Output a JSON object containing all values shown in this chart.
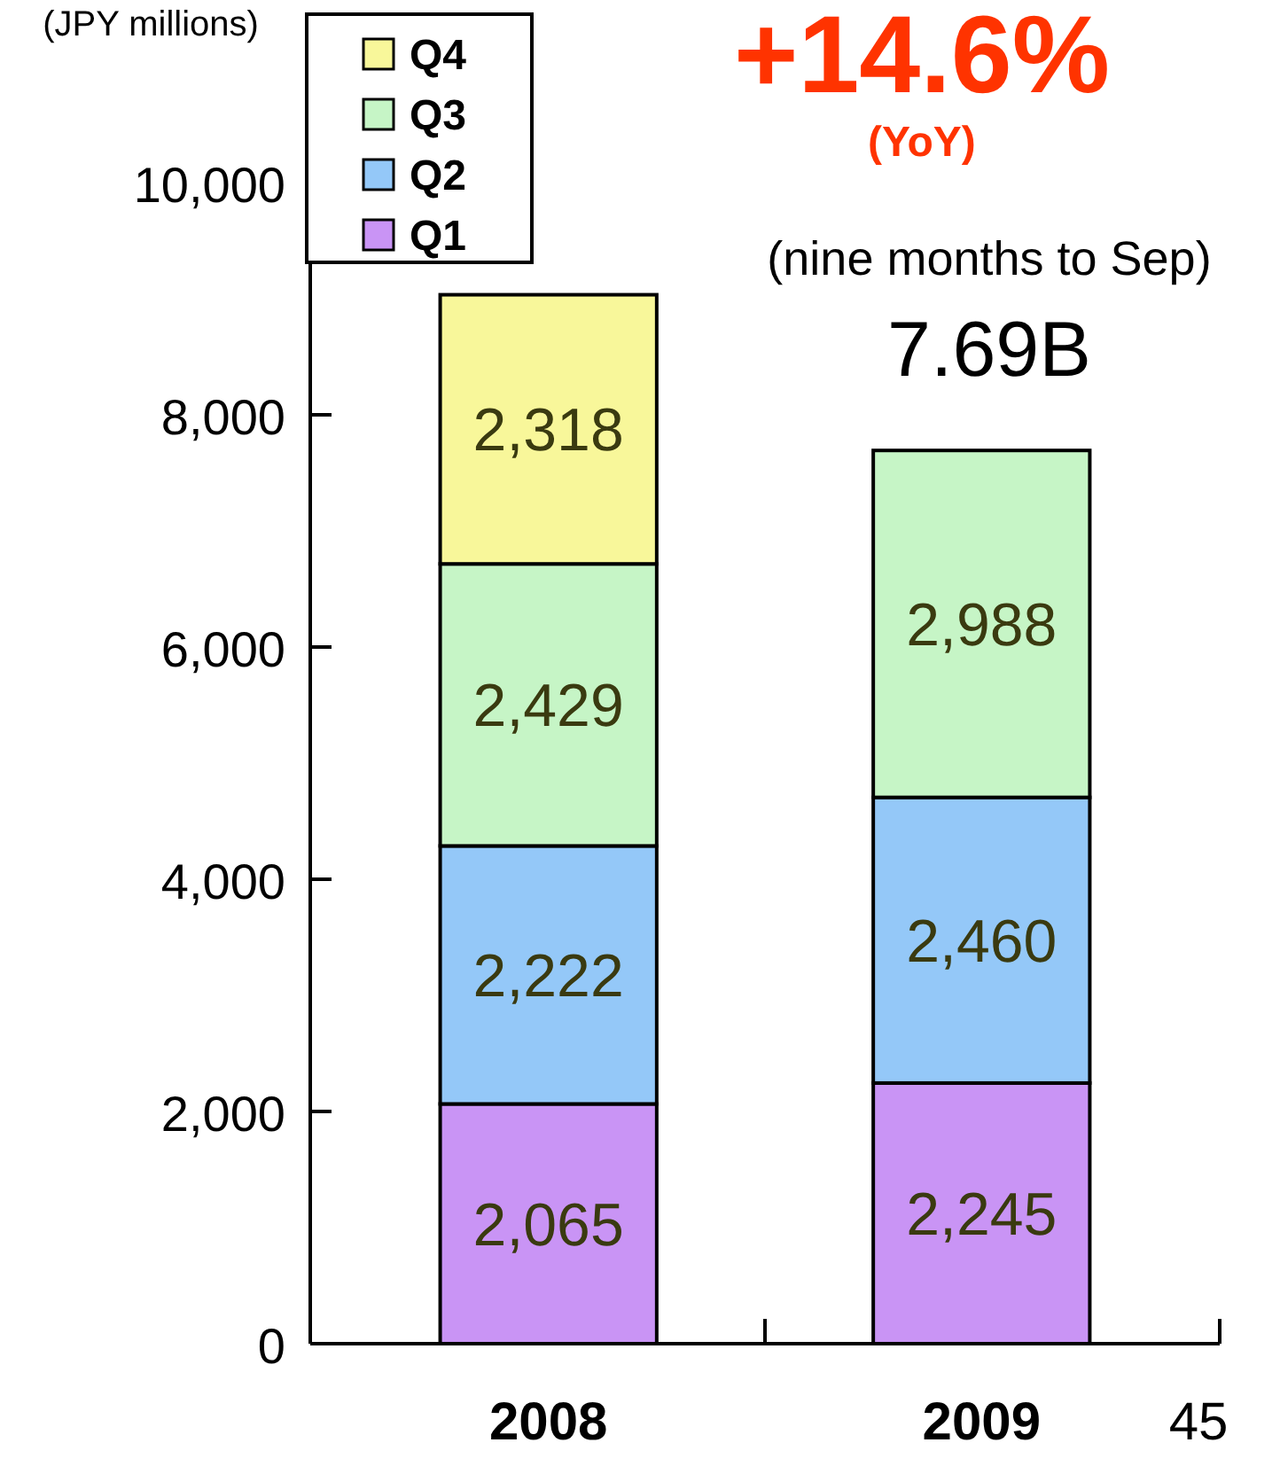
{
  "chart_data": {
    "type": "bar",
    "stacked": true,
    "ylabel": "(JPY millions)",
    "categories": [
      "2008",
      "2009"
    ],
    "series": [
      {
        "name": "Q1",
        "color": "#c994f5",
        "values": [
          2065,
          2245
        ],
        "value_labels": [
          "2,065",
          "2,245"
        ]
      },
      {
        "name": "Q2",
        "color": "#94c8f8",
        "values": [
          2222,
          2460
        ],
        "value_labels": [
          "2,222",
          "2,460"
        ]
      },
      {
        "name": "Q3",
        "color": "#c6f5c6",
        "values": [
          2429,
          2988
        ],
        "value_labels": [
          "2,429",
          "2,988"
        ]
      },
      {
        "name": "Q4",
        "color": "#f8f79a",
        "values": [
          2318,
          null
        ],
        "value_labels": [
          "2,318",
          null
        ]
      }
    ],
    "ylim": [
      0,
      10000
    ],
    "yticks": [
      {
        "value": 0,
        "label": "0"
      },
      {
        "value": 2000,
        "label": "2,000"
      },
      {
        "value": 4000,
        "label": "4,000"
      },
      {
        "value": 6000,
        "label": "6,000"
      },
      {
        "value": 8000,
        "label": "8,000"
      },
      {
        "value": 10000,
        "label": "10,000"
      }
    ],
    "legend": "top left",
    "grid": false,
    "annotations": [
      "+14.6%",
      "(YoY)",
      "(nine months to Sep)",
      "7.69B",
      "45"
    ]
  }
}
